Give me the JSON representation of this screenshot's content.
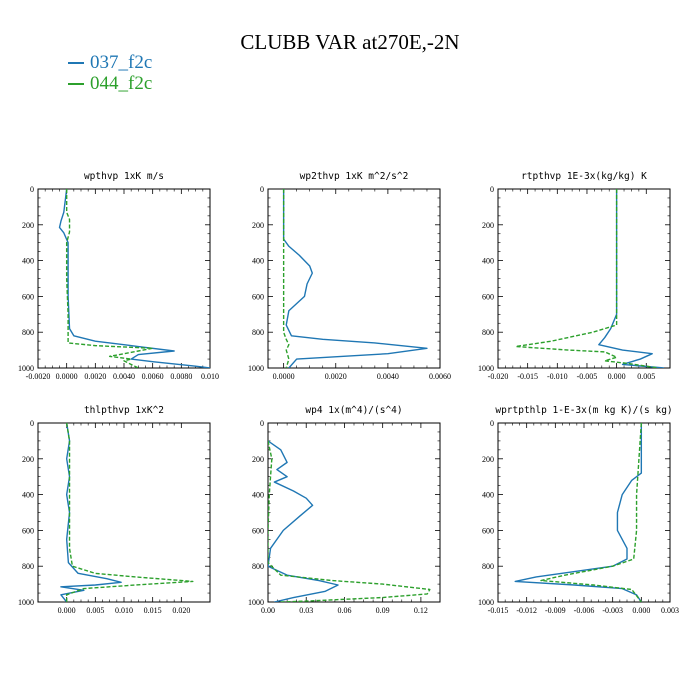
{
  "title": "CLUBB VAR at270E,-2N",
  "legend": [
    {
      "label": "037_f2c",
      "color": "#1f77b4",
      "dash": "solid"
    },
    {
      "label": "044_f2c",
      "color": "#2ca02c",
      "dash": "dashed"
    }
  ],
  "chart_data": [
    {
      "type": "line",
      "title": "wpthvp  1xK m/s",
      "xlim": [
        -0.002,
        0.01
      ],
      "ylim": [
        1000,
        0
      ],
      "xticks": [
        "-0.0020",
        "0.0000",
        "0.0020",
        "0.0040",
        "0.0060",
        "0.0080",
        "0.010"
      ],
      "xtick_values": [
        -0.002,
        0,
        0.002,
        0.004,
        0.006,
        0.008,
        0.01
      ],
      "yticks": [
        "0",
        "200",
        "400",
        "600",
        "800",
        "1000"
      ],
      "ytick_values": [
        0,
        200,
        400,
        600,
        800,
        1000
      ],
      "series": [
        {
          "name": "037_f2c",
          "points": [
            [
              0.0,
              0
            ],
            [
              -0.0002,
              130
            ],
            [
              -0.0004,
              180
            ],
            [
              -0.0005,
              215
            ],
            [
              -0.0002,
              245
            ],
            [
              0.0001,
              300
            ],
            [
              0.0001,
              400
            ],
            [
              0.0001,
              600
            ],
            [
              0.0002,
              780
            ],
            [
              0.0005,
              820
            ],
            [
              0.002,
              850
            ],
            [
              0.005,
              880
            ],
            [
              0.0075,
              905
            ],
            [
              0.005,
              925
            ],
            [
              0.0045,
              950
            ],
            [
              0.006,
              965
            ],
            [
              0.009,
              990
            ],
            [
              0.01,
              1000
            ]
          ]
        },
        {
          "name": "044_f2c",
          "points": [
            [
              0.0,
              0
            ],
            [
              0.0,
              130
            ],
            [
              0.0002,
              170
            ],
            [
              0.0002,
              240
            ],
            [
              0.0,
              300
            ],
            [
              0.0,
              500
            ],
            [
              0.0001,
              700
            ],
            [
              0.0001,
              860
            ],
            [
              0.002,
              875
            ],
            [
              0.006,
              890
            ],
            [
              0.005,
              905
            ],
            [
              0.003,
              935
            ],
            [
              0.0045,
              950
            ],
            [
              0.004,
              960
            ],
            [
              0.005,
              1000
            ]
          ]
        }
      ]
    },
    {
      "type": "line",
      "title": "wp2thvp  1xK m^2/s^2",
      "xlim": [
        -0.0006,
        0.006
      ],
      "ylim": [
        1000,
        0
      ],
      "xticks": [
        "0.0000",
        "0.0020",
        "0.0040",
        "0.0060"
      ],
      "xtick_values": [
        0,
        0.002,
        0.004,
        0.006
      ],
      "yticks": [
        "0",
        "200",
        "400",
        "600",
        "800",
        "1000"
      ],
      "ytick_values": [
        0,
        200,
        400,
        600,
        800,
        1000
      ],
      "series": [
        {
          "name": "037_f2c",
          "points": [
            [
              0.0,
              0
            ],
            [
              0.0,
              280
            ],
            [
              0.0002,
              320
            ],
            [
              0.0006,
              370
            ],
            [
              0.001,
              430
            ],
            [
              0.0011,
              470
            ],
            [
              0.0009,
              530
            ],
            [
              0.0008,
              600
            ],
            [
              0.0002,
              680
            ],
            [
              0.0001,
              760
            ],
            [
              0.0003,
              820
            ],
            [
              0.0015,
              840
            ],
            [
              0.0035,
              860
            ],
            [
              0.0055,
              890
            ],
            [
              0.004,
              920
            ],
            [
              0.0005,
              950
            ],
            [
              0.0002,
              1000
            ]
          ]
        },
        {
          "name": "044_f2c",
          "points": [
            [
              0.0,
              0
            ],
            [
              0.0,
              800
            ],
            [
              0.0001,
              840
            ],
            [
              0.0002,
              870
            ],
            [
              0.0001,
              900
            ],
            [
              0.0002,
              950
            ],
            [
              0.0001,
              1000
            ]
          ]
        }
      ]
    },
    {
      "type": "line",
      "title": "rtpthvp  1E-3x(kg/kg) K",
      "xlim": [
        -0.02,
        0.009
      ],
      "ylim": [
        1000,
        0
      ],
      "xticks": [
        "-0.020",
        "-0.015",
        "-0.010",
        "-0.005",
        "0.000",
        "0.005"
      ],
      "xtick_values": [
        -0.02,
        -0.015,
        -0.01,
        -0.005,
        0,
        0.005
      ],
      "yticks": [
        "0",
        "200",
        "400",
        "600",
        "800",
        "1000"
      ],
      "ytick_values": [
        0,
        200,
        400,
        600,
        800,
        1000
      ],
      "series": [
        {
          "name": "037_f2c",
          "points": [
            [
              0.0,
              0
            ],
            [
              0.0,
              700
            ],
            [
              -0.001,
              780
            ],
            [
              -0.002,
              830
            ],
            [
              -0.003,
              870
            ],
            [
              0.001,
              900
            ],
            [
              0.006,
              920
            ],
            [
              0.004,
              950
            ],
            [
              0.001,
              980
            ],
            [
              0.008,
              1000
            ]
          ]
        },
        {
          "name": "044_f2c",
          "points": [
            [
              0.0,
              0
            ],
            [
              0.0,
              760
            ],
            [
              -0.004,
              800
            ],
            [
              -0.011,
              850
            ],
            [
              -0.017,
              880
            ],
            [
              -0.008,
              900
            ],
            [
              -0.002,
              910
            ],
            [
              0.0,
              940
            ],
            [
              -0.002,
              960
            ],
            [
              0.002,
              975
            ],
            [
              0.007,
              1000
            ]
          ]
        }
      ]
    },
    {
      "type": "line",
      "title": "thlpthvp  1xK^2",
      "xlim": [
        -0.005,
        0.025
      ],
      "ylim": [
        1000,
        0
      ],
      "xticks": [
        "0.000",
        "0.005",
        "0.010",
        "0.015",
        "0.020"
      ],
      "xtick_values": [
        0,
        0.005,
        0.01,
        0.015,
        0.02
      ],
      "yticks": [
        "0",
        "200",
        "400",
        "600",
        "800",
        "1000"
      ],
      "ytick_values": [
        0,
        200,
        400,
        600,
        800,
        1000
      ],
      "series": [
        {
          "name": "037_f2c",
          "points": [
            [
              0.0,
              0
            ],
            [
              0.0005,
              100
            ],
            [
              0.0,
              200
            ],
            [
              0.0005,
              300
            ],
            [
              0.0,
              400
            ],
            [
              0.0005,
              500
            ],
            [
              0.0,
              650
            ],
            [
              0.0003,
              780
            ],
            [
              0.002,
              840
            ],
            [
              0.007,
              870
            ],
            [
              0.0095,
              890
            ],
            [
              0.005,
              905
            ],
            [
              -0.001,
              915
            ],
            [
              0.003,
              935
            ],
            [
              -0.001,
              960
            ],
            [
              0.0,
              1000
            ]
          ]
        },
        {
          "name": "044_f2c",
          "points": [
            [
              0.0,
              0
            ],
            [
              0.0005,
              100
            ],
            [
              0.0005,
              400
            ],
            [
              0.0005,
              700
            ],
            [
              0.001,
              800
            ],
            [
              0.005,
              840
            ],
            [
              0.012,
              860
            ],
            [
              0.022,
              885
            ],
            [
              0.012,
              905
            ],
            [
              0.003,
              925
            ],
            [
              0.0,
              960
            ],
            [
              0.0,
              1000
            ]
          ]
        }
      ]
    },
    {
      "type": "line",
      "title": "wp4  1x(m^4)/(s^4)",
      "xlim": [
        0.0,
        0.135
      ],
      "ylim": [
        1000,
        0
      ],
      "xticks": [
        "0.00",
        "0.03",
        "0.06",
        "0.09",
        "0.12"
      ],
      "xtick_values": [
        0,
        0.03,
        0.06,
        0.09,
        0.12
      ],
      "yticks": [
        "0",
        "200",
        "400",
        "600",
        "800",
        "1000"
      ],
      "ytick_values": [
        0,
        200,
        400,
        600,
        800,
        1000
      ],
      "series": [
        {
          "name": "037_f2c",
          "points": [
            [
              0.0,
              100
            ],
            [
              0.01,
              150
            ],
            [
              0.015,
              220
            ],
            [
              0.007,
              260
            ],
            [
              0.015,
              300
            ],
            [
              0.005,
              330
            ],
            [
              0.02,
              380
            ],
            [
              0.03,
              420
            ],
            [
              0.035,
              460
            ],
            [
              0.025,
              520
            ],
            [
              0.012,
              600
            ],
            [
              0.002,
              700
            ],
            [
              0.0,
              800
            ],
            [
              0.015,
              850
            ],
            [
              0.04,
              880
            ],
            [
              0.055,
              905
            ],
            [
              0.045,
              940
            ],
            [
              0.02,
              975
            ],
            [
              0.005,
              1000
            ]
          ]
        },
        {
          "name": "044_f2c",
          "points": [
            [
              0.0,
              100
            ],
            [
              0.003,
              200
            ],
            [
              0.001,
              400
            ],
            [
              0.0,
              600
            ],
            [
              0.0,
              780
            ],
            [
              0.01,
              850
            ],
            [
              0.05,
              880
            ],
            [
              0.09,
              900
            ],
            [
              0.127,
              930
            ],
            [
              0.125,
              955
            ],
            [
              0.09,
              975
            ],
            [
              0.03,
              995
            ],
            [
              0.01,
              1000
            ]
          ]
        }
      ]
    },
    {
      "type": "line",
      "title": "wprtpthlp  1-E-3x(m kg K)/(s kg)",
      "xlim": [
        -0.015,
        0.003
      ],
      "ylim": [
        1000,
        0
      ],
      "xticks": [
        "-0.015",
        "-0.012",
        "-0.009",
        "-0.006",
        "-0.003",
        "0.000",
        "0.003"
      ],
      "xtick_values": [
        -0.015,
        -0.012,
        -0.009,
        -0.006,
        -0.003,
        0,
        0.003
      ],
      "yticks": [
        "0",
        "200",
        "400",
        "600",
        "800",
        "1000"
      ],
      "ytick_values": [
        0,
        200,
        400,
        600,
        800,
        1000
      ],
      "series": [
        {
          "name": "037_f2c",
          "points": [
            [
              0.0,
              0
            ],
            [
              0.0,
              280
            ],
            [
              -0.001,
              320
            ],
            [
              -0.002,
              400
            ],
            [
              -0.0025,
              500
            ],
            [
              -0.0025,
              600
            ],
            [
              -0.0015,
              700
            ],
            [
              -0.0015,
              760
            ],
            [
              -0.003,
              800
            ],
            [
              -0.007,
              830
            ],
            [
              -0.011,
              860
            ],
            [
              -0.0132,
              885
            ],
            [
              -0.007,
              905
            ],
            [
              -0.002,
              925
            ],
            [
              -0.0005,
              960
            ],
            [
              0.0,
              1000
            ]
          ]
        },
        {
          "name": "044_f2c",
          "points": [
            [
              0.0,
              0
            ],
            [
              -0.0005,
              400
            ],
            [
              -0.0005,
              600
            ],
            [
              -0.0008,
              760
            ],
            [
              -0.003,
              800
            ],
            [
              -0.008,
              850
            ],
            [
              -0.0105,
              880
            ],
            [
              -0.005,
              905
            ],
            [
              -0.001,
              930
            ],
            [
              0.0,
              1000
            ]
          ]
        }
      ]
    }
  ]
}
